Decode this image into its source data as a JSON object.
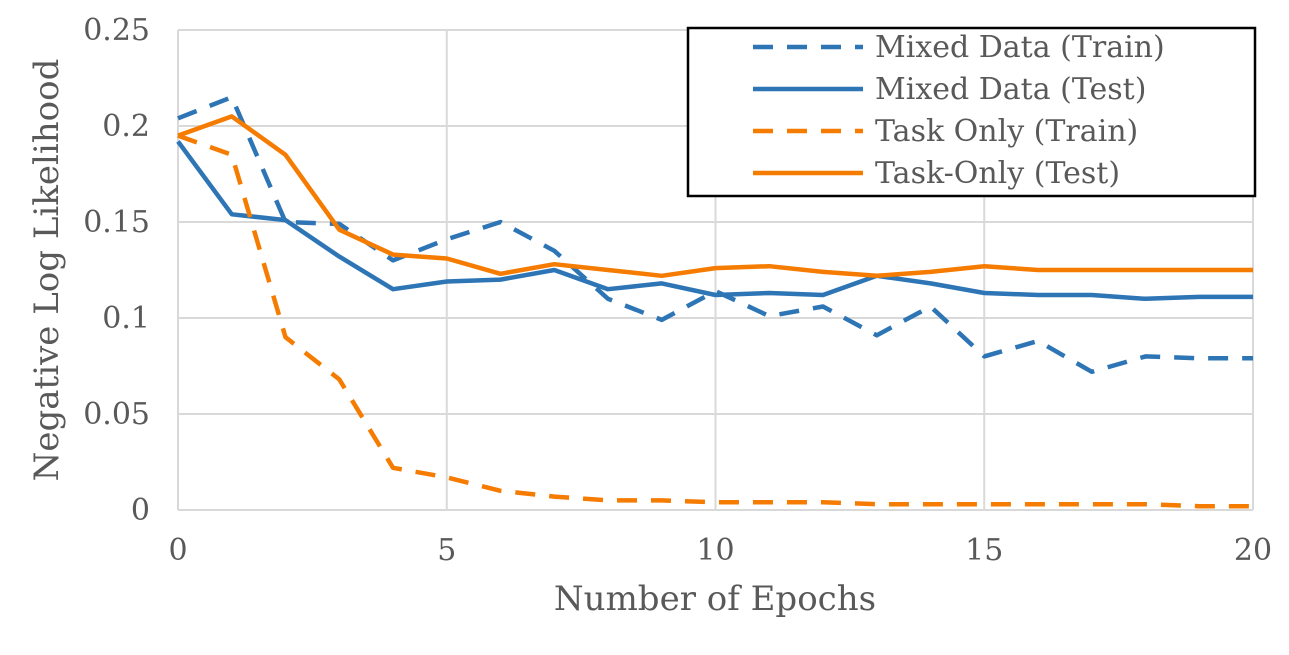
{
  "chart_data": {
    "type": "line",
    "title": "",
    "xlabel": "Number of Epochs",
    "ylabel": "Negative Log Likelihood",
    "xlim": [
      0,
      20
    ],
    "ylim": [
      0,
      0.25
    ],
    "x_ticks": [
      "0",
      "5",
      "10",
      "15",
      "20"
    ],
    "y_ticks": [
      "0",
      "0.05",
      "0.1",
      "0.15",
      "0.2",
      "0.25"
    ],
    "grid": true,
    "legend_position": "top-right",
    "x": [
      0,
      1,
      2,
      3,
      4,
      5,
      6,
      7,
      8,
      9,
      10,
      11,
      12,
      13,
      14,
      15,
      16,
      17,
      18,
      19,
      20
    ],
    "series": [
      {
        "name": "Mixed Data (Train)",
        "color": "#2e75b6",
        "dash": "dashed",
        "values": [
          0.204,
          0.215,
          0.15,
          0.149,
          0.13,
          0.141,
          0.15,
          0.135,
          0.11,
          0.099,
          0.114,
          0.101,
          0.106,
          0.091,
          0.106,
          0.08,
          0.088,
          0.072,
          0.08,
          0.079,
          0.079
        ]
      },
      {
        "name": "Mixed Data (Test)",
        "color": "#2e75b6",
        "dash": "solid",
        "values": [
          0.192,
          0.154,
          0.151,
          0.132,
          0.115,
          0.119,
          0.12,
          0.125,
          0.115,
          0.118,
          0.112,
          0.113,
          0.112,
          0.122,
          0.118,
          0.113,
          0.112,
          0.112,
          0.11,
          0.111,
          0.111
        ]
      },
      {
        "name": "Task Only (Train)",
        "color": "#f57c00",
        "dash": "dashed",
        "values": [
          0.195,
          0.185,
          0.09,
          0.068,
          0.022,
          0.017,
          0.01,
          0.007,
          0.005,
          0.005,
          0.004,
          0.004,
          0.004,
          0.003,
          0.003,
          0.003,
          0.003,
          0.003,
          0.003,
          0.002,
          0.002
        ]
      },
      {
        "name": "Task-Only (Test)",
        "color": "#f57c00",
        "dash": "solid",
        "values": [
          0.195,
          0.205,
          0.185,
          0.146,
          0.133,
          0.131,
          0.123,
          0.128,
          0.125,
          0.122,
          0.126,
          0.127,
          0.124,
          0.122,
          0.124,
          0.127,
          0.125,
          0.125,
          0.125,
          0.125,
          0.125
        ]
      }
    ]
  }
}
